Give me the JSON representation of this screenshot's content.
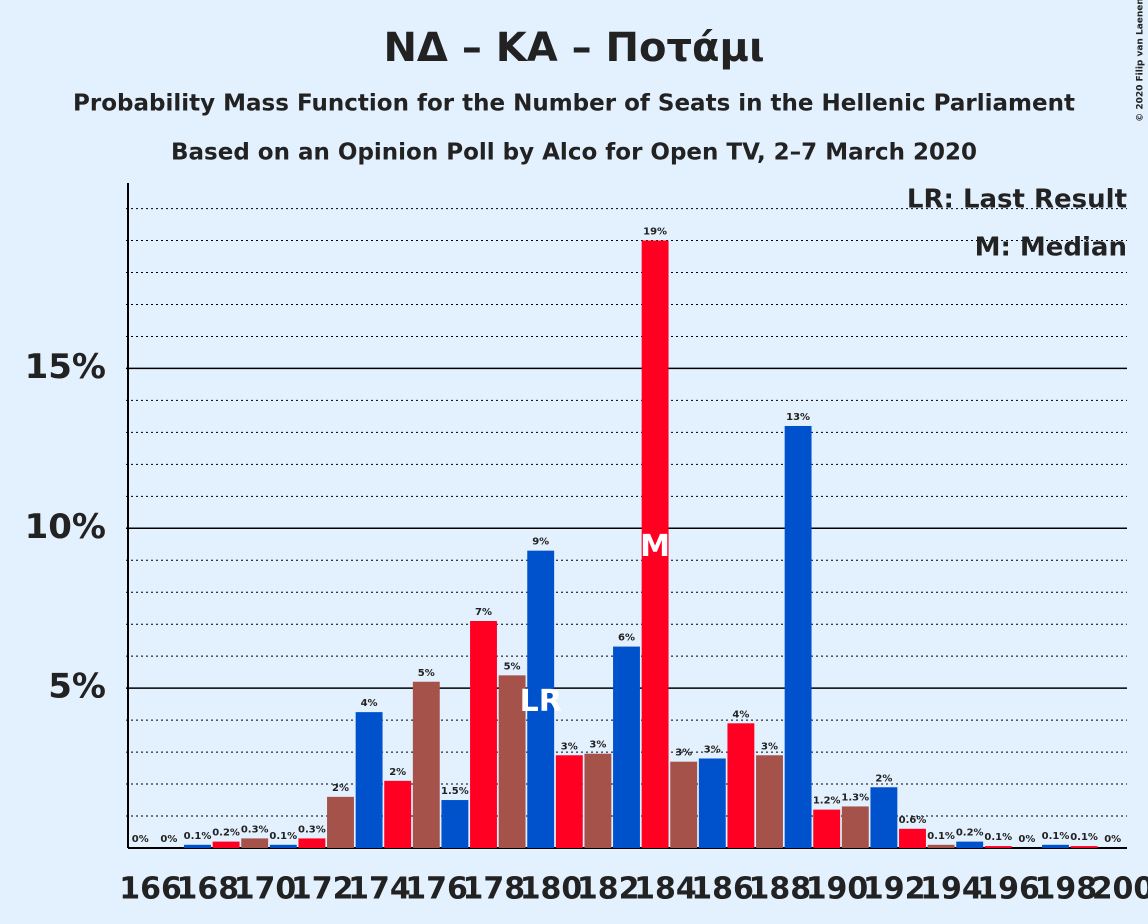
{
  "chart_data": {
    "type": "bar",
    "title": "ΝΔ – ΚΑ – Ποτάμι",
    "subtitle": "Probability Mass Function for the Number of Seats in the Hellenic Parliament",
    "subtitle2": "Based on an Opinion Poll by Alco for Open TV, 2–7 March 2020",
    "copyright": "© 2020 Filip van Laenen",
    "legend": [
      "LR: Last Result",
      "M: Median"
    ],
    "legend_position": "top-right",
    "categories": [
      166,
      null,
      168,
      null,
      170,
      null,
      172,
      null,
      174,
      null,
      176,
      null,
      178,
      null,
      180,
      null,
      182,
      null,
      184,
      null,
      186,
      null,
      188,
      null,
      190,
      null,
      192,
      null,
      194,
      null,
      196,
      null,
      198,
      null,
      200
    ],
    "values": [
      0,
      0,
      0.1,
      0.2,
      0.3,
      0.1,
      0.3,
      1.6,
      4.25,
      2.1,
      5.2,
      1.5,
      7.1,
      5.4,
      9.3,
      2.9,
      2.95,
      6.3,
      19.0,
      2.7,
      2.8,
      3.9,
      2.9,
      13.2,
      1.2,
      1.3,
      1.9,
      0.6,
      0.1,
      0.2,
      0.06,
      0,
      0.1,
      0.06,
      0
    ],
    "value_labels": [
      "0%",
      "0%",
      "0.1%",
      "0.2%",
      "0.3%",
      "0.1%",
      "0.3%",
      "2%",
      "4%",
      "2%",
      "5%",
      "1.5%",
      "7%",
      "5%",
      "9%",
      "3%",
      "3%",
      "6%",
      "19%",
      "3%",
      "3%",
      "4%",
      "3%",
      "13%",
      "1.2%",
      "1.3%",
      "2%",
      "0.6%",
      "0.1%",
      "0.2%",
      "0.1%",
      "0%",
      "0.1%",
      "0.1%",
      "0%"
    ],
    "colors": [
      "#a5524a",
      "#0052cc",
      "#0052cc",
      "#ff0022",
      "#a5524a",
      "#0052cc",
      "#ff0022",
      "#a5524a",
      "#0052cc",
      "#ff0022",
      "#a5524a",
      "#0052cc",
      "#ff0022",
      "#a5524a",
      "#0052cc",
      "#ff0022",
      "#a5524a",
      "#0052cc",
      "#ff0022",
      "#a5524a",
      "#0052cc",
      "#ff0022",
      "#a5524a",
      "#0052cc",
      "#ff0022",
      "#a5524a",
      "#0052cc",
      "#ff0022",
      "#a5524a",
      "#0052cc",
      "#ff0022",
      "#a5524a",
      "#0052cc",
      "#ff0022",
      "#a5524a"
    ],
    "annotations": [
      {
        "text": "LR",
        "category": 180
      },
      {
        "text": "M",
        "category": 184
      }
    ],
    "ylim": [
      0,
      20.8
    ],
    "yticks": [
      {
        "value": 5,
        "label": "5%"
      },
      {
        "value": 10,
        "label": "10%"
      },
      {
        "value": 15,
        "label": "15%"
      }
    ],
    "minor_yticks": [
      1,
      2,
      3,
      4,
      6,
      7,
      8,
      9,
      11,
      12,
      13,
      14,
      16,
      17,
      18,
      19,
      20
    ],
    "grid": true
  }
}
